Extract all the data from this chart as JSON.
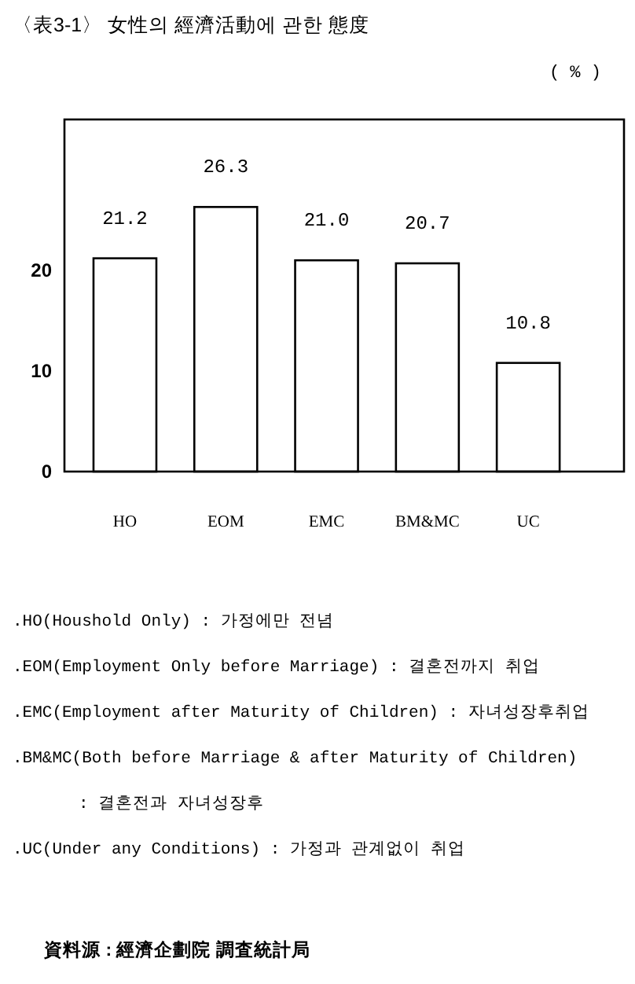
{
  "chart_data": {
    "type": "bar",
    "title": "〈表3-1〉 女性의 經濟活動에 관한 態度",
    "ylabel": "( % )",
    "categories": [
      "HO",
      "EOM",
      "EMC",
      "BM&MC",
      "UC"
    ],
    "values": [
      21.2,
      26.3,
      21.0,
      20.7,
      10.8
    ],
    "value_labels": [
      "21.2",
      "26.3",
      "21.0",
      "20.7",
      "10.8"
    ],
    "color": "#ffffff",
    "ylim": [
      0,
      35
    ],
    "yticks": [
      0,
      10,
      20
    ],
    "annotations": [
      ".HO(Houshold Only) : 가정에만 전념",
      ".EOM(Employment Only before Marriage) : 결혼전까지 취업",
      ".EMC(Employment after Maturity of Children) : 자녀성장후취업",
      ".BM&MC(Both before Marriage & after Maturity of Children)\n: 결혼전과 자녀성장후",
      ".UC(Under any Conditions) : 가정과 관계없이 취업",
      "資料源 : 經濟企劃院 調査統計局"
    ]
  }
}
